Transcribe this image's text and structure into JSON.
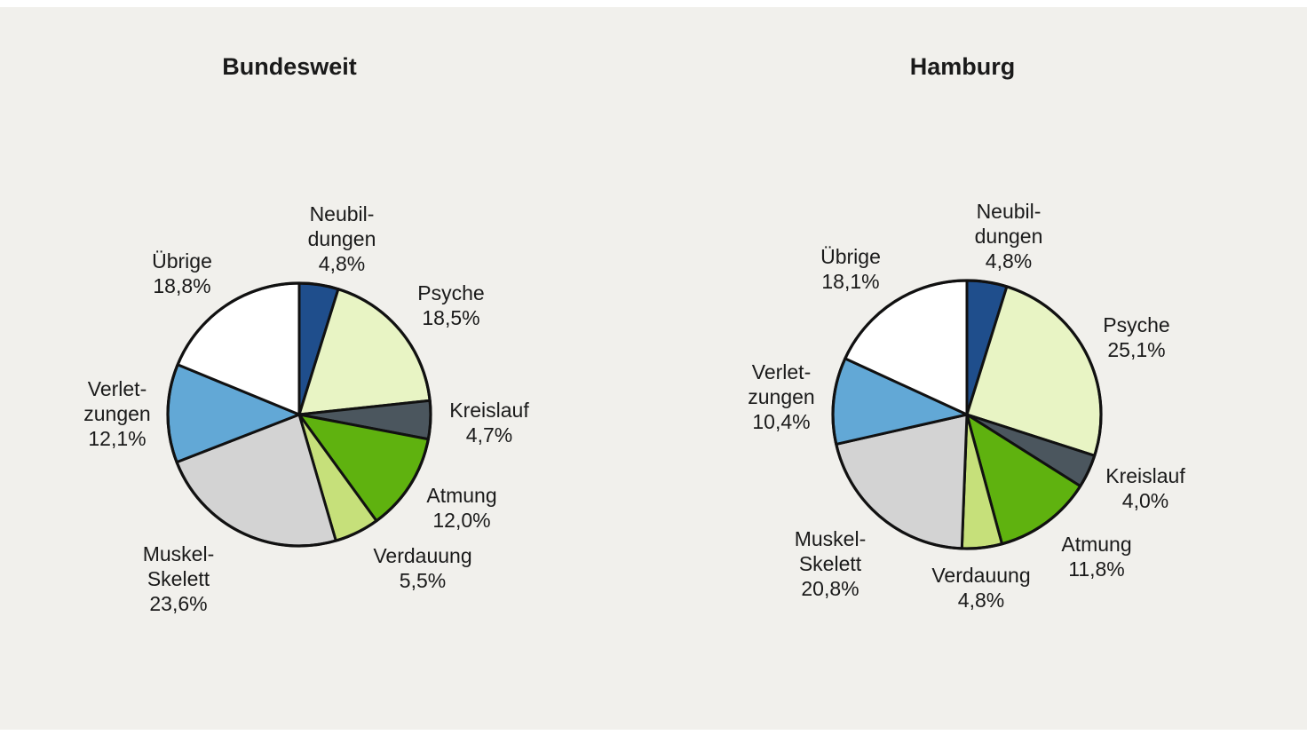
{
  "chart_data": [
    {
      "type": "pie",
      "title": "Bundesweit",
      "slices": [
        {
          "label": [
            "Neubil-",
            "dungen"
          ],
          "value_label": "4,8%",
          "value": 4.8,
          "color": "#1f4e8c"
        },
        {
          "label": [
            "Psyche"
          ],
          "value_label": "18,5%",
          "value": 18.5,
          "color": "#e8f4c4"
        },
        {
          "label": [
            "Kreislauf"
          ],
          "value_label": "4,7%",
          "value": 4.7,
          "color": "#4b565e"
        },
        {
          "label": [
            "Atmung"
          ],
          "value_label": "12,0%",
          "value": 12.0,
          "color": "#5fb20f"
        },
        {
          "label": [
            "Verdauung"
          ],
          "value_label": "5,5%",
          "value": 5.5,
          "color": "#c6e07a"
        },
        {
          "label": [
            "Muskel-",
            "Skelett"
          ],
          "value_label": "23,6%",
          "value": 23.6,
          "color": "#d3d3d3"
        },
        {
          "label": [
            "Verlet-",
            "zungen"
          ],
          "value_label": "12,1%",
          "value": 12.1,
          "color": "#62a8d6"
        },
        {
          "label": [
            "Übrige"
          ],
          "value_label": "18,8%",
          "value": 18.8,
          "color": "#ffffff"
        }
      ]
    },
    {
      "type": "pie",
      "title": "Hamburg",
      "slices": [
        {
          "label": [
            "Neubil-",
            "dungen"
          ],
          "value_label": "4,8%",
          "value": 4.8,
          "color": "#1f4e8c"
        },
        {
          "label": [
            "Psyche"
          ],
          "value_label": "25,1%",
          "value": 25.1,
          "color": "#e8f4c4"
        },
        {
          "label": [
            "Kreislauf"
          ],
          "value_label": "4,0%",
          "value": 4.0,
          "color": "#4b565e"
        },
        {
          "label": [
            "Atmung"
          ],
          "value_label": "11,8%",
          "value": 11.8,
          "color": "#5fb20f"
        },
        {
          "label": [
            "Verdauung"
          ],
          "value_label": "4,8%",
          "value": 4.8,
          "color": "#c6e07a"
        },
        {
          "label": [
            "Muskel-",
            "Skelett"
          ],
          "value_label": "20,8%",
          "value": 20.8,
          "color": "#d3d3d3"
        },
        {
          "label": [
            "Verlet-",
            "zungen"
          ],
          "value_label": "10,4%",
          "value": 10.4,
          "color": "#62a8d6"
        },
        {
          "label": [
            "Übrige"
          ],
          "value_label": "18,1%",
          "value": 18.1,
          "color": "#ffffff"
        }
      ]
    }
  ]
}
